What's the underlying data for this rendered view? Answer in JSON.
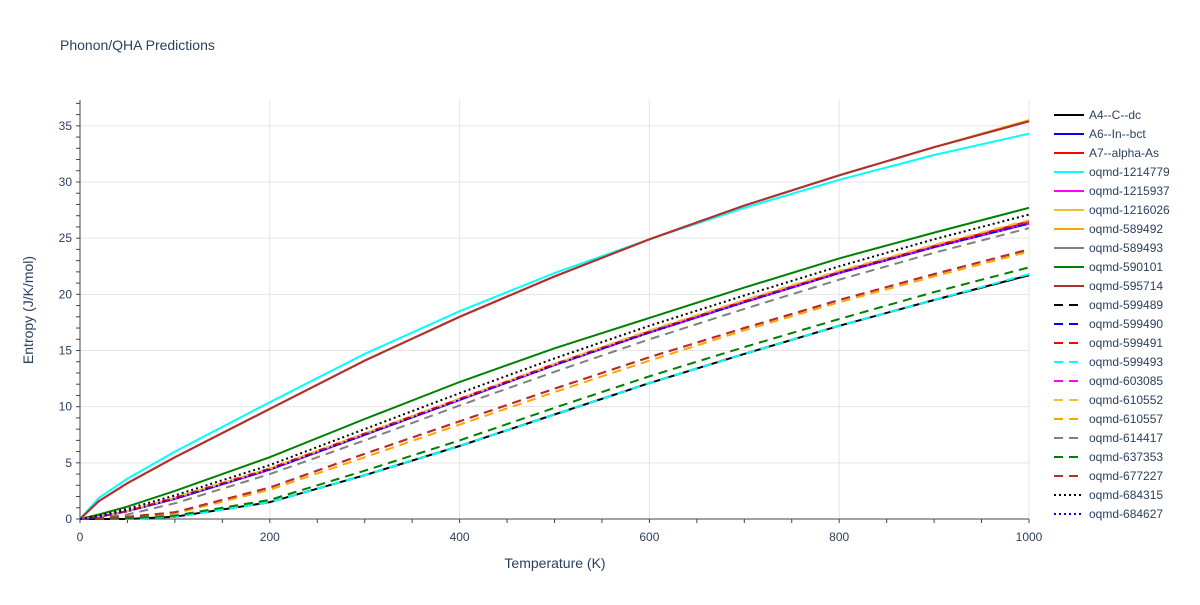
{
  "chart_data": {
    "type": "line",
    "title": "Phonon/QHA Predictions",
    "xlabel": "Temperature (K)",
    "ylabel": "Entropy (J/K/mol)",
    "xlim": [
      0,
      1000
    ],
    "ylim": [
      0,
      37.3
    ],
    "xticks": [
      0,
      200,
      400,
      600,
      800,
      1000
    ],
    "yticks": [
      0,
      5,
      10,
      15,
      20,
      25,
      30,
      35
    ],
    "grid": true,
    "legend_position": "right",
    "x": [
      0,
      20,
      50,
      100,
      200,
      300,
      400,
      500,
      600,
      700,
      800,
      900,
      1000
    ],
    "series": [
      {
        "name": "A4--C--dc",
        "color": "#000000",
        "dash": "solid",
        "values": [
          0,
          0,
          0,
          0.2,
          1.5,
          3.9,
          6.5,
          9.3,
          12.1,
          14.7,
          17.2,
          19.5,
          21.7
        ]
      },
      {
        "name": "A6--In--bct",
        "color": "#0000ff",
        "dash": "solid",
        "values": [
          0,
          0.2,
          0.7,
          1.8,
          4.4,
          7.5,
          10.6,
          13.7,
          16.6,
          19.3,
          21.9,
          24.2,
          26.3
        ]
      },
      {
        "name": "A7--alpha-As",
        "color": "#ff0000",
        "dash": "solid",
        "values": [
          0,
          0.2,
          0.7,
          1.9,
          4.5,
          7.6,
          10.7,
          13.8,
          16.7,
          19.4,
          22.0,
          24.3,
          26.5
        ]
      },
      {
        "name": "oqmd-1214779",
        "color": "#00ffff",
        "dash": "solid",
        "values": [
          0,
          1.9,
          3.6,
          6.0,
          10.4,
          14.7,
          18.5,
          21.9,
          24.9,
          27.7,
          30.2,
          32.4,
          34.3
        ]
      },
      {
        "name": "oqmd-1215937",
        "color": "#ff00ff",
        "dash": "solid",
        "values": [
          0,
          1.6,
          3.2,
          5.5,
          9.8,
          14.1,
          18.0,
          21.6,
          24.9,
          27.9,
          30.6,
          33.1,
          35.4
        ]
      },
      {
        "name": "oqmd-1216026",
        "color": "#f0c030",
        "dash": "solid",
        "values": [
          0,
          1.6,
          3.2,
          5.5,
          9.8,
          14.1,
          18.0,
          21.6,
          24.9,
          27.9,
          30.6,
          33.1,
          35.5
        ]
      },
      {
        "name": "oqmd-589492",
        "color": "#ffa500",
        "dash": "solid",
        "values": [
          0,
          1.6,
          3.2,
          5.5,
          9.8,
          14.1,
          18.0,
          21.6,
          24.9,
          27.9,
          30.6,
          33.1,
          35.5
        ]
      },
      {
        "name": "oqmd-589493",
        "color": "#808080",
        "dash": "solid",
        "values": [
          0,
          1.6,
          3.2,
          5.5,
          9.8,
          14.1,
          18.0,
          21.6,
          24.9,
          27.9,
          30.6,
          33.1,
          35.4
        ]
      },
      {
        "name": "oqmd-590101",
        "color": "#008000",
        "dash": "solid",
        "values": [
          0,
          0.4,
          1.1,
          2.5,
          5.5,
          8.9,
          12.2,
          15.2,
          17.9,
          20.6,
          23.2,
          25.5,
          27.7
        ]
      },
      {
        "name": "oqmd-595714",
        "color": "#b03030",
        "dash": "solid",
        "values": [
          0,
          1.6,
          3.2,
          5.5,
          9.8,
          14.1,
          18.0,
          21.6,
          24.9,
          27.9,
          30.6,
          33.1,
          35.4
        ]
      },
      {
        "name": "oqmd-599489",
        "color": "#000000",
        "dash": "dash",
        "values": [
          0,
          0,
          0,
          0.2,
          1.5,
          3.9,
          6.5,
          9.3,
          12.1,
          14.7,
          17.2,
          19.5,
          21.7
        ]
      },
      {
        "name": "oqmd-599490",
        "color": "#0000ff",
        "dash": "dash",
        "values": [
          0,
          0.2,
          0.7,
          1.8,
          4.4,
          7.5,
          10.6,
          13.7,
          16.6,
          19.3,
          21.9,
          24.2,
          26.3
        ]
      },
      {
        "name": "oqmd-599491",
        "color": "#ff0000",
        "dash": "dash",
        "values": [
          0,
          0.05,
          0.2,
          0.6,
          2.8,
          5.8,
          8.7,
          11.6,
          14.4,
          17.0,
          19.5,
          21.8,
          24.0
        ]
      },
      {
        "name": "oqmd-599493",
        "color": "#00ffff",
        "dash": "dash",
        "values": [
          0,
          0,
          0,
          0.2,
          1.5,
          3.9,
          6.5,
          9.3,
          12.1,
          14.7,
          17.2,
          19.5,
          21.8
        ]
      },
      {
        "name": "oqmd-603085",
        "color": "#ff00ff",
        "dash": "dash",
        "values": [
          0,
          0.2,
          0.7,
          1.8,
          4.4,
          7.5,
          10.6,
          13.7,
          16.6,
          19.3,
          21.9,
          24.2,
          26.3
        ]
      },
      {
        "name": "oqmd-610552",
        "color": "#f0c030",
        "dash": "dash",
        "values": [
          0,
          0.2,
          0.7,
          1.9,
          4.5,
          7.6,
          10.7,
          13.8,
          16.8,
          19.5,
          22.1,
          24.4,
          26.6
        ]
      },
      {
        "name": "oqmd-610557",
        "color": "#ffa500",
        "dash": "dash",
        "values": [
          0,
          0.05,
          0.2,
          0.5,
          2.6,
          5.5,
          8.4,
          11.3,
          14.1,
          16.8,
          19.3,
          21.6,
          23.8
        ]
      },
      {
        "name": "oqmd-614417",
        "color": "#808080",
        "dash": "dash",
        "values": [
          0,
          0.1,
          0.4,
          1.4,
          4.0,
          7.0,
          10.1,
          13.1,
          16.0,
          18.7,
          21.3,
          23.7,
          25.9
        ]
      },
      {
        "name": "oqmd-637353",
        "color": "#008000",
        "dash": "dash",
        "values": [
          0,
          0,
          0.05,
          0.3,
          1.7,
          4.3,
          7.0,
          9.9,
          12.7,
          15.3,
          17.8,
          20.2,
          22.4
        ]
      },
      {
        "name": "oqmd-677227",
        "color": "#b03030",
        "dash": "dash",
        "values": [
          0,
          0.05,
          0.2,
          0.6,
          2.8,
          5.8,
          8.7,
          11.6,
          14.4,
          17.0,
          19.5,
          21.8,
          24.0
        ]
      },
      {
        "name": "oqmd-684315",
        "color": "#000000",
        "dash": "dot",
        "values": [
          0,
          0.3,
          0.9,
          2.1,
          4.8,
          8.0,
          11.2,
          14.3,
          17.2,
          19.9,
          22.5,
          24.9,
          27.1
        ]
      },
      {
        "name": "oqmd-684627",
        "color": "#0000ff",
        "dash": "dot",
        "values": [
          0,
          0.2,
          0.7,
          1.8,
          4.4,
          7.5,
          10.6,
          13.7,
          16.6,
          19.3,
          21.9,
          24.2,
          26.3
        ]
      }
    ]
  }
}
